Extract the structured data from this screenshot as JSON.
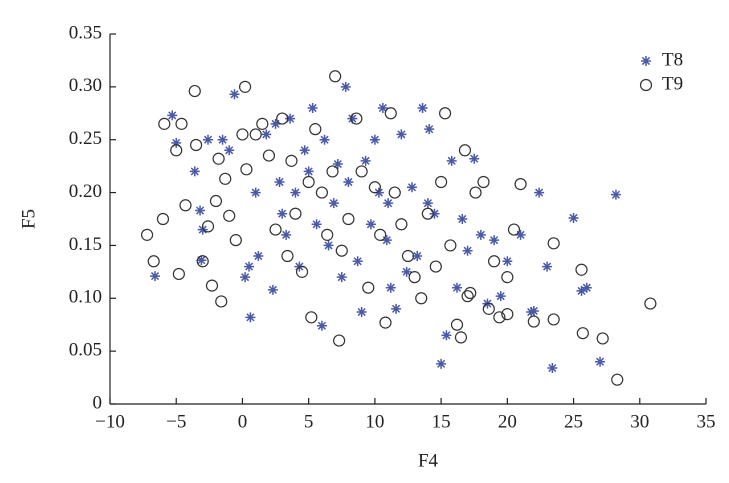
{
  "chart_data": {
    "type": "scatter",
    "x_label": "F4",
    "y_label": "F5",
    "xlim": [
      -10,
      35
    ],
    "ylim": [
      0,
      0.35
    ],
    "xticks": [
      {
        "value": -10,
        "label": "−10"
      },
      {
        "value": -5,
        "label": "−5"
      },
      0,
      5,
      10,
      15,
      20,
      25,
      30,
      35
    ],
    "yticks": [
      0,
      0.05,
      {
        "value": 0.1,
        "label": "0.10"
      },
      0.15,
      {
        "value": 0.2,
        "label": "0.20"
      },
      0.25,
      {
        "value": 0.3,
        "label": "0.30"
      },
      0.35
    ],
    "legend": "top-right",
    "series": [
      {
        "name": "T8",
        "marker": "star",
        "color": "#4a5aa8",
        "x": [
          -5.3,
          -6.6,
          -5,
          -3.6,
          -3.2,
          -3,
          -3.1,
          -2.6,
          -1.5,
          -1,
          -0.6,
          0.2,
          0.5,
          0.6,
          1,
          1.2,
          1.8,
          2.3,
          2.5,
          2.8,
          3,
          3.3,
          3.6,
          4,
          4.3,
          4.7,
          5,
          5.3,
          5.6,
          6,
          6.2,
          6.5,
          6.9,
          7.2,
          7.5,
          7.8,
          8,
          8.3,
          8.7,
          9,
          9.3,
          9.7,
          10,
          10.3,
          10.6,
          10.9,
          11.2,
          11.6,
          12,
          12.4,
          12.8,
          13.2,
          13.6,
          14.1,
          14.5,
          15,
          15.4,
          15.8,
          16.2,
          16.6,
          17,
          17.5,
          18,
          18.5,
          19,
          19.5,
          20,
          21,
          21.8,
          22.4,
          23,
          23.4,
          25,
          25.6,
          26,
          27,
          28.2,
          22,
          14,
          11
        ],
        "values": [
          0.273,
          0.121,
          0.247,
          0.22,
          0.183,
          0.165,
          0.136,
          0.25,
          0.25,
          0.24,
          0.293,
          0.12,
          0.13,
          0.082,
          0.2,
          0.14,
          0.255,
          0.108,
          0.265,
          0.21,
          0.18,
          0.16,
          0.27,
          0.2,
          0.13,
          0.24,
          0.22,
          0.28,
          0.17,
          0.074,
          0.25,
          0.15,
          0.19,
          0.227,
          0.12,
          0.3,
          0.21,
          0.27,
          0.135,
          0.087,
          0.23,
          0.17,
          0.25,
          0.2,
          0.28,
          0.155,
          0.11,
          0.09,
          0.255,
          0.125,
          0.205,
          0.14,
          0.28,
          0.26,
          0.18,
          0.038,
          0.065,
          0.23,
          0.11,
          0.175,
          0.145,
          0.232,
          0.16,
          0.095,
          0.155,
          0.102,
          0.135,
          0.16,
          0.087,
          0.2,
          0.13,
          0.034,
          0.176,
          0.107,
          0.11,
          0.04,
          0.198,
          0.088,
          0.19,
          0.19
        ]
      },
      {
        "name": "T9",
        "marker": "circle",
        "color": "#333333",
        "x": [
          -7.2,
          -6.7,
          -6,
          -5.9,
          -5,
          -4.8,
          -4.6,
          -4.3,
          -3.6,
          -3.5,
          -3,
          -2.6,
          -2.3,
          -2,
          -1.8,
          -1.6,
          -1.3,
          -1,
          -0.5,
          0,
          0.2,
          0.3,
          1,
          1.5,
          2,
          2.5,
          3,
          3.4,
          3.7,
          4,
          4.5,
          5,
          5.2,
          5.5,
          6,
          6.4,
          6.8,
          7,
          7.3,
          7.5,
          8,
          8.6,
          9,
          9.5,
          10,
          10.4,
          10.8,
          11.2,
          11.5,
          12,
          12.5,
          13,
          13.5,
          14,
          14.6,
          15,
          15.3,
          15.7,
          16.2,
          16.5,
          16.8,
          17.2,
          17.6,
          18.2,
          18.6,
          19,
          19.4,
          20,
          20.5,
          21,
          22,
          23.5,
          23.5,
          25.6,
          25.7,
          27.2,
          28.3,
          30.8,
          17,
          20
        ],
        "values": [
          0.16,
          0.135,
          0.175,
          0.265,
          0.24,
          0.123,
          0.265,
          0.188,
          0.296,
          0.245,
          0.135,
          0.168,
          0.112,
          0.192,
          0.232,
          0.097,
          0.213,
          0.178,
          0.155,
          0.255,
          0.3,
          0.222,
          0.255,
          0.265,
          0.235,
          0.165,
          0.27,
          0.14,
          0.23,
          0.18,
          0.125,
          0.21,
          0.082,
          0.26,
          0.2,
          0.16,
          0.22,
          0.31,
          0.06,
          0.145,
          0.175,
          0.27,
          0.22,
          0.11,
          0.205,
          0.16,
          0.077,
          0.275,
          0.2,
          0.17,
          0.14,
          0.12,
          0.1,
          0.18,
          0.13,
          0.21,
          0.275,
          0.15,
          0.075,
          0.063,
          0.24,
          0.105,
          0.2,
          0.21,
          0.09,
          0.135,
          0.082,
          0.12,
          0.165,
          0.208,
          0.078,
          0.152,
          0.08,
          0.127,
          0.067,
          0.062,
          0.023,
          0.095,
          0.102,
          0.085
        ]
      }
    ]
  }
}
